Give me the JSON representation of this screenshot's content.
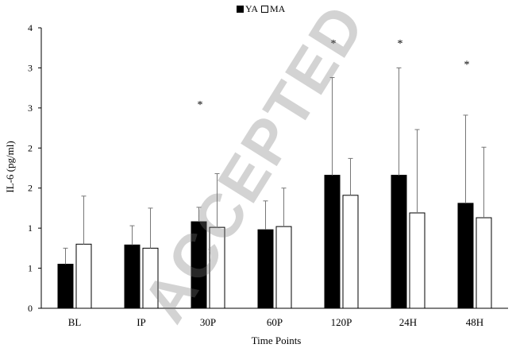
{
  "chart_data": {
    "type": "bar",
    "title": "",
    "xlabel": "Time Points",
    "ylabel": "IL-6 (pg/ml)",
    "categories": [
      "BL",
      "IP",
      "30P",
      "60P",
      "120P",
      "24H",
      "48H"
    ],
    "ylim": [
      0,
      3.5
    ],
    "y_ticks": [
      0,
      0.5,
      1,
      1.5,
      2,
      2.5,
      3,
      3.5
    ],
    "y_tick_labels": [
      "0",
      "1",
      "1",
      "2",
      "2",
      "3",
      "3",
      "4"
    ],
    "series": [
      {
        "name": "YA",
        "fill": "#000000",
        "values": [
          0.55,
          0.79,
          1.08,
          0.98,
          1.66,
          1.66,
          1.31
        ],
        "error_plus": [
          0.2,
          0.24,
          0.18,
          0.36,
          1.22,
          1.34,
          1.1
        ]
      },
      {
        "name": "MA",
        "fill": "#ffffff",
        "values": [
          0.8,
          0.75,
          1.01,
          1.02,
          1.41,
          1.19,
          1.13
        ],
        "error_plus": [
          0.6,
          0.5,
          0.67,
          0.48,
          0.46,
          1.04,
          0.88
        ]
      }
    ],
    "significance": [
      {
        "category": "30P",
        "label": "*",
        "level": 2.58
      },
      {
        "category": "120P",
        "label": "*",
        "level": 3.34
      },
      {
        "category": "24H",
        "label": "*",
        "level": 3.34
      },
      {
        "category": "48H",
        "label": "*",
        "level": 3.08
      }
    ],
    "grid": false,
    "legend_position": "top-center"
  },
  "legend": {
    "ya": "YA",
    "ma": "MA"
  },
  "watermark": "ACCEPTED"
}
